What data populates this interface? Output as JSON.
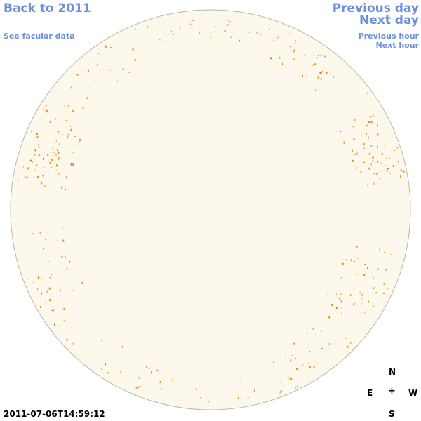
{
  "nav": {
    "back": "Back to 2011",
    "facular": "See facular data",
    "previous_day": "Previous day",
    "next_day": "Next day",
    "previous_hour": "Previous hour",
    "next_hour": "Next hour"
  },
  "timestamp": "2011-07-06T14:59:12",
  "compass": {
    "north": "N",
    "east": "E",
    "center": "+",
    "west": "W",
    "south": "S"
  },
  "colors": {
    "link": "#6b8fdc",
    "disc_fill": "#fdf8ec",
    "disc_edge": "#bdb6a8",
    "facula": "#e8890c"
  }
}
